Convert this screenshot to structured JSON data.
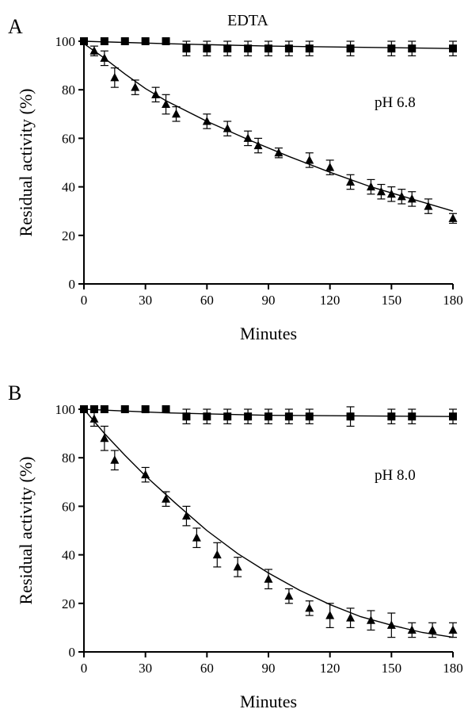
{
  "figure": {
    "title": "EDTA"
  },
  "chart_data": [
    {
      "type": "scatter",
      "panel_label": "A",
      "annotation": "pH 6.8",
      "xlabel": "Minutes",
      "ylabel": "Residual activity (%)",
      "xlim": [
        0,
        180
      ],
      "ylim": [
        0,
        100
      ],
      "xticks": [
        0,
        30,
        60,
        90,
        120,
        150,
        180
      ],
      "yticks": [
        0,
        20,
        40,
        60,
        80,
        100
      ],
      "grid": false,
      "series": [
        {
          "marker": "square",
          "x": [
            0,
            10,
            20,
            30,
            40,
            50,
            60,
            70,
            80,
            90,
            100,
            110,
            130,
            150,
            160,
            180
          ],
          "y": [
            100,
            100,
            100,
            100,
            100,
            97,
            97,
            97,
            97,
            97,
            97,
            97,
            97,
            97,
            97,
            97
          ],
          "err": [
            0,
            0,
            0,
            0,
            0,
            3,
            3,
            3,
            3,
            3,
            3,
            3,
            3,
            3,
            3,
            3
          ],
          "fit": [
            [
              0,
              100
            ],
            [
              40,
              99
            ],
            [
              90,
              98
            ],
            [
              180,
              97
            ]
          ]
        },
        {
          "marker": "triangle",
          "x": [
            5,
            10,
            15,
            25,
            35,
            40,
            45,
            60,
            70,
            80,
            85,
            95,
            110,
            120,
            130,
            140,
            145,
            150,
            155,
            160,
            168,
            180
          ],
          "y": [
            96,
            93,
            85,
            81,
            78,
            74,
            70,
            67,
            64,
            60,
            57,
            54,
            51,
            48,
            42,
            40,
            38,
            37,
            36,
            35,
            32,
            27
          ],
          "err": [
            2,
            3,
            4,
            3,
            3,
            4,
            3,
            3,
            3,
            3,
            3,
            2,
            3,
            3,
            3,
            3,
            3,
            3,
            3,
            3,
            3,
            2
          ],
          "fit": [
            [
              0,
              99
            ],
            [
              10,
              93
            ],
            [
              20,
              86.5
            ],
            [
              30,
              80.5
            ],
            [
              40,
              75.5
            ],
            [
              60,
              67
            ],
            [
              80,
              59.5
            ],
            [
              100,
              52.5
            ],
            [
              120,
              46
            ],
            [
              140,
              40
            ],
            [
              160,
              35
            ],
            [
              180,
              30
            ]
          ]
        }
      ]
    },
    {
      "type": "scatter",
      "panel_label": "B",
      "annotation": "pH 8.0",
      "xlabel": "Minutes",
      "ylabel": "Residual activity (%)",
      "xlim": [
        0,
        180
      ],
      "ylim": [
        0,
        100
      ],
      "xticks": [
        0,
        30,
        60,
        90,
        120,
        150,
        180
      ],
      "yticks": [
        0,
        20,
        40,
        60,
        80,
        100
      ],
      "grid": false,
      "series": [
        {
          "marker": "square",
          "x": [
            0,
            5,
            10,
            20,
            30,
            40,
            50,
            60,
            70,
            80,
            90,
            100,
            110,
            130,
            150,
            160,
            180
          ],
          "y": [
            100,
            100,
            100,
            100,
            100,
            100,
            97,
            97,
            97,
            97,
            97,
            97,
            97,
            97,
            97,
            97,
            97
          ],
          "err": [
            0,
            0,
            0,
            0,
            0,
            0,
            3,
            3,
            3,
            3,
            3,
            3,
            3,
            4,
            3,
            3,
            3
          ],
          "fit": [
            [
              0,
              100
            ],
            [
              40,
              98.5
            ],
            [
              90,
              97.5
            ],
            [
              180,
              97
            ]
          ]
        },
        {
          "marker": "triangle",
          "x": [
            5,
            10,
            15,
            30,
            40,
            50,
            55,
            65,
            75,
            90,
            100,
            110,
            120,
            130,
            140,
            150,
            160,
            170,
            180
          ],
          "y": [
            96,
            88,
            79,
            73,
            63,
            56,
            47,
            40,
            35,
            30,
            23,
            18,
            15,
            14,
            13,
            11,
            9,
            9,
            9
          ],
          "err": [
            3,
            5,
            4,
            3,
            3,
            4,
            4,
            5,
            4,
            4,
            3,
            3,
            5,
            4,
            4,
            5,
            3,
            3,
            3
          ],
          "fit": [
            [
              0,
              100
            ],
            [
              10,
              90
            ],
            [
              20,
              81
            ],
            [
              30,
              72.5
            ],
            [
              45,
              61
            ],
            [
              60,
              50
            ],
            [
              75,
              40.5
            ],
            [
              90,
              32.5
            ],
            [
              105,
              25.5
            ],
            [
              120,
              19.5
            ],
            [
              135,
              14.5
            ],
            [
              150,
              11
            ],
            [
              165,
              8
            ],
            [
              180,
              6
            ]
          ]
        }
      ]
    }
  ]
}
